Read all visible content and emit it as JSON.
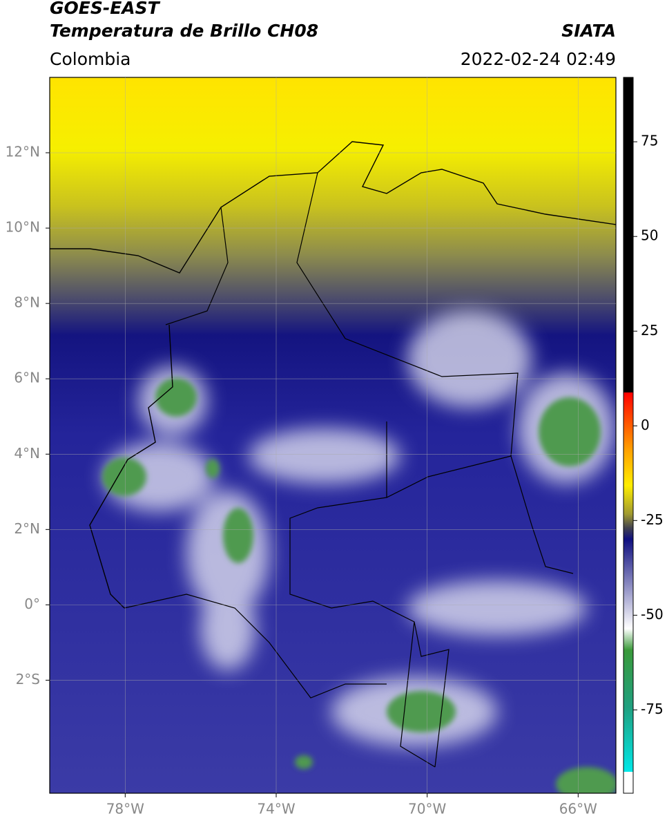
{
  "header": {
    "title": "GOES-EAST",
    "subtitle": "Temperatura de Brillo CH08",
    "region": "Colombia",
    "source": "SIATA",
    "timestamp": "2022-02-24 02:49"
  },
  "map": {
    "xlim": [
      -80,
      -65
    ],
    "ylim": [
      -5,
      14
    ],
    "xticks": [
      {
        "value": -78,
        "label": "78°W"
      },
      {
        "value": -74,
        "label": "74°W"
      },
      {
        "value": -70,
        "label": "70°W"
      },
      {
        "value": -66,
        "label": "66°W"
      }
    ],
    "yticks": [
      {
        "value": 12,
        "label": "12°N"
      },
      {
        "value": 10,
        "label": "10°N"
      },
      {
        "value": 8,
        "label": "8°N"
      },
      {
        "value": 6,
        "label": "6°N"
      },
      {
        "value": 4,
        "label": "4°N"
      },
      {
        "value": 2,
        "label": "2°N"
      },
      {
        "value": 0,
        "label": "0°"
      },
      {
        "value": -2,
        "label": "2°S"
      }
    ],
    "grid": true
  },
  "colorbar": {
    "lim": [
      -97,
      92
    ],
    "ticks": [
      75,
      50,
      25,
      0,
      -25,
      -50,
      -75
    ]
  }
}
